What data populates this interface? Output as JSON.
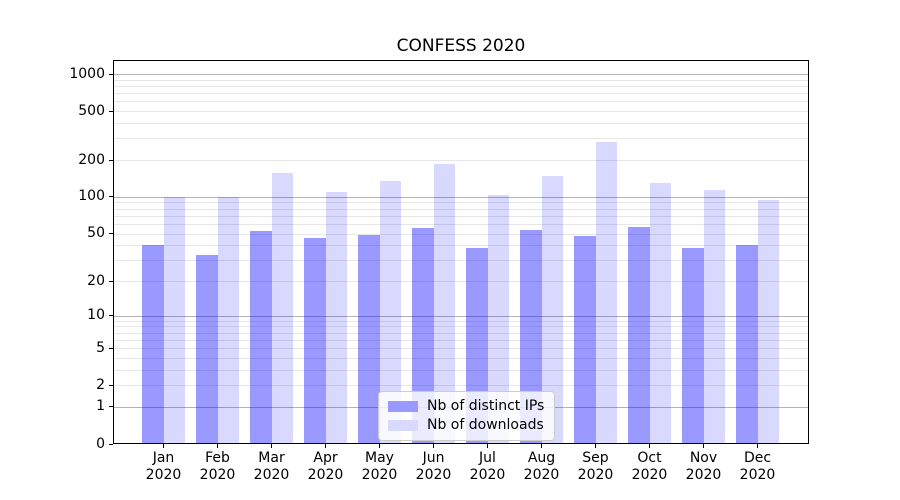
{
  "chart_data": {
    "type": "bar",
    "title": "CONFESS 2020",
    "categories": [
      "Jan 2020",
      "Feb 2020",
      "Mar 2020",
      "Apr 2020",
      "May 2020",
      "Jun 2020",
      "Jul 2020",
      "Aug 2020",
      "Sep 2020",
      "Oct 2020",
      "Nov 2020",
      "Dec 2020"
    ],
    "x_tick_months": [
      "Jan",
      "Feb",
      "Mar",
      "Apr",
      "May",
      "Jun",
      "Jul",
      "Aug",
      "Sep",
      "Oct",
      "Nov",
      "Dec"
    ],
    "x_tick_year": "2020",
    "series": [
      {
        "name": "Nb of distinct IPs",
        "fill": "rgba(0,0,255,0.4)",
        "hex_on_white": "#9999ff",
        "values": [
          40,
          33,
          52,
          46,
          49,
          56,
          38,
          53,
          48,
          57,
          38,
          40
        ]
      },
      {
        "name": "Nb of downloads",
        "fill": "rgba(0,0,255,0.15)",
        "hex_on_white": "#d9d9ff",
        "values": [
          100,
          100,
          157,
          110,
          136,
          185,
          104,
          147,
          280,
          131,
          113,
          95
        ]
      }
    ],
    "y_scale": "log1p",
    "y_ticks": [
      0,
      1,
      2,
      5,
      10,
      20,
      50,
      100,
      200,
      500,
      1000
    ],
    "y_tick_labels": [
      "0",
      "1",
      "2",
      "5",
      "10",
      "20",
      "50",
      "100",
      "200",
      "500",
      "1000"
    ],
    "ylim": [
      0,
      1300
    ],
    "xlabel": "",
    "ylabel": "",
    "grid": "horizontal major and minor",
    "legend_position": "lower center",
    "colors": {
      "bar_base": "#0000ff",
      "grid_major": "#b3b3b3",
      "grid_minor": "#e7e7e7",
      "spine": "#000000",
      "legend_border": "#cccccc"
    }
  }
}
